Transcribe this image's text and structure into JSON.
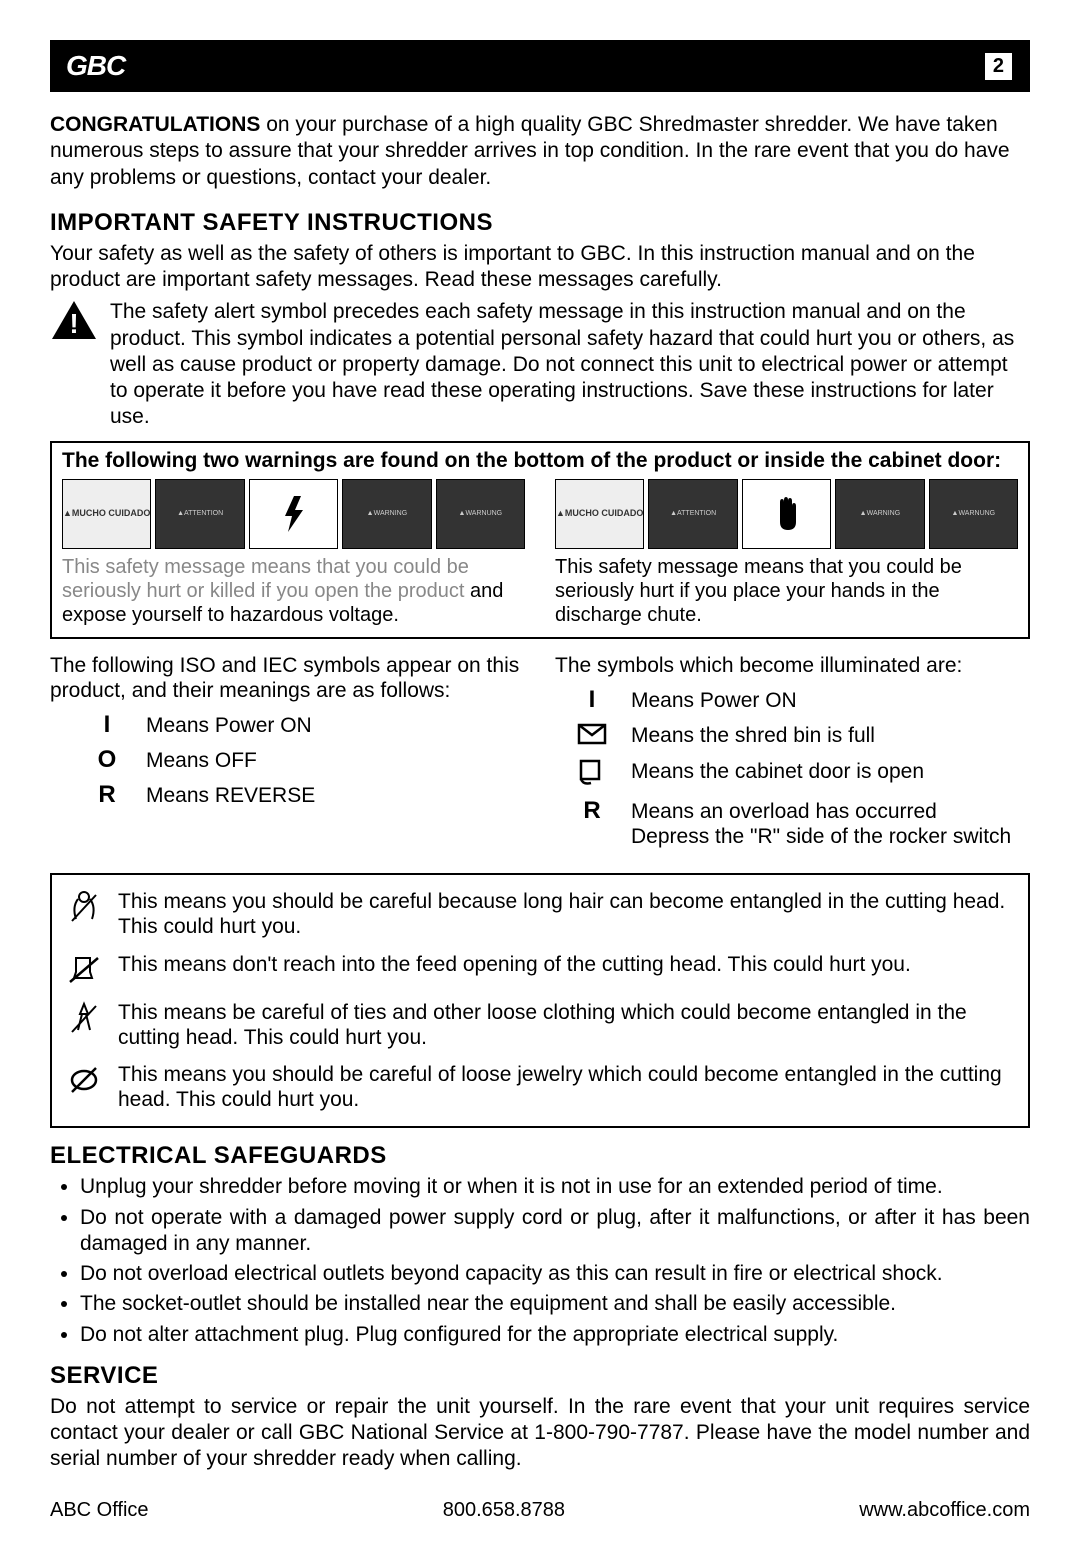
{
  "logo": "GBC",
  "page_number": "2",
  "intro_bold": "CONGRATULATIONS",
  "intro_rest": " on your purchase of a high quality GBC Shredmaster shredder.  We have taken numerous steps to assure that your shredder arrives in top condition. In the rare event that you do have any problems or questions, contact your dealer.",
  "safety": {
    "heading": "IMPORTANT SAFETY INSTRUCTIONS",
    "p1": "Your safety as well as the safety of others is important to GBC. In this instruction manual and on the product are important safety messages. Read these messages carefully.",
    "alert": "The safety alert symbol precedes each safety message in this instruction manual and on the product. This symbol indicates a potential personal safety hazard that could hurt you or others, as well as cause product or property damage. Do not connect this unit to electrical power or attempt to operate it before you have read these operating instructions. Save these instructions for later use."
  },
  "warnings": {
    "title": "The following two warnings are found on the bottom of the product or inside the cabinet door:",
    "left": {
      "labels": [
        "▲MUCHO CUIDADO",
        "▲ATTENTION",
        "⚡",
        "▲WARNING",
        "▲WARNUNG"
      ],
      "caption_faded": "This safety message means that you could be seriously hurt or killed if you open the product ",
      "caption_bold": "and expose yourself to hazardous voltage."
    },
    "right": {
      "labels": [
        "▲MUCHO CUIDADO",
        "▲ATTENTION",
        "✋",
        "▲WARNING",
        "▲WARNUNG"
      ],
      "caption": "This safety message means that you could be seriously hurt if you place your hands in the discharge chute."
    }
  },
  "symbols": {
    "left_intro": "The following ISO and IEC symbols appear on this product, and their meanings are as follows:",
    "left_items": [
      {
        "glyph": "I",
        "text": "Means Power ON"
      },
      {
        "glyph": "O",
        "text": "Means OFF"
      },
      {
        "glyph": "R",
        "text": "Means REVERSE"
      }
    ],
    "right_intro": "The symbols which become illuminated are:",
    "right_items": [
      {
        "glyph": "I",
        "text": "Means Power ON"
      },
      {
        "glyph": "bin",
        "text": "Means the shred bin is full"
      },
      {
        "glyph": "door",
        "text": "Means the cabinet door is open"
      },
      {
        "glyph": "R",
        "text": "Means an overload has occurred\nDepress the \"R\" side of the rocker switch"
      }
    ]
  },
  "hazards": [
    "This means you should be careful because long hair can become entangled in the cutting head. This could hurt you.",
    "This means don't reach into the feed opening of the cutting head. This could hurt you.",
    "This means be careful of ties and other loose clothing which could become entangled in the cutting head. This could hurt you.",
    "This means you should be careful of loose jewelry which could become entangled in the cutting head. This could hurt you."
  ],
  "electrical": {
    "heading": "ELECTRICAL SAFEGUARDS",
    "items": [
      "Unplug your shredder before moving it or when it is not in use for an extended period of time.",
      "Do not operate with a damaged power supply cord or plug, after it malfunctions, or after it has been damaged in any manner.",
      "Do not overload electrical outlets beyond capacity as this can result in fire or electrical shock.",
      "The socket-outlet should be installed near the equipment and shall be easily accessible.",
      "Do not alter attachment plug. Plug configured for the appropriate electrical supply."
    ]
  },
  "service": {
    "heading": "SERVICE",
    "text": "Do not attempt to service or repair the unit yourself. In the rare event that your unit requires service contact your dealer or call GBC National Service at 1-800-790-7787. Please have the model number and serial number of your shredder ready when calling."
  },
  "footer": {
    "left": "ABC Office",
    "mid": "800.658.8788",
    "right": "www.abcoffice.com"
  },
  "colors": {
    "text": "#000000",
    "bg": "#ffffff",
    "faded": "#888888",
    "bar": "#000000"
  }
}
